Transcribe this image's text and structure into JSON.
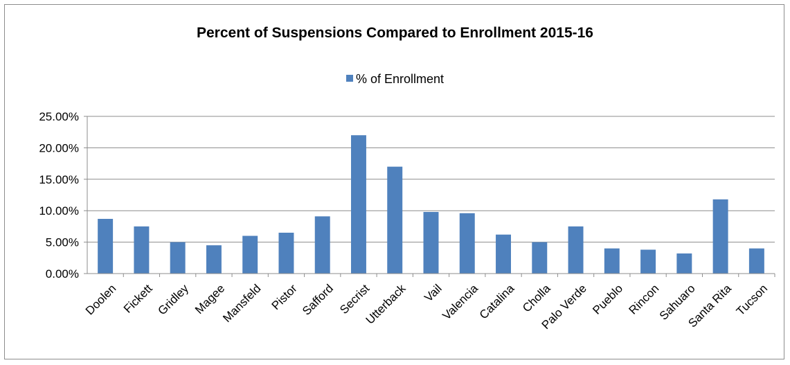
{
  "chart_data": {
    "type": "bar",
    "title": "Percent of Suspensions Compared to Enrollment 2015-16",
    "categories": [
      "Doolen",
      "Fickett",
      "Gridley",
      "Magee",
      "Mansfeld",
      "Pistor",
      "Safford",
      "Secrist",
      "Utterback",
      "Vail",
      "Valencia",
      "Catalina",
      "Cholla",
      "Palo Verde",
      "Pueblo",
      "Rincon",
      "Sahuaro",
      "Santa Rita",
      "Tucson"
    ],
    "series": [
      {
        "name": "% of Enrollment",
        "color": "#4f81bd",
        "values": [
          0.087,
          0.075,
          0.05,
          0.045,
          0.06,
          0.065,
          0.091,
          0.22,
          0.17,
          0.098,
          0.096,
          0.062,
          0.05,
          0.075,
          0.04,
          0.038,
          0.032,
          0.118,
          0.04
        ]
      }
    ],
    "ylim": [
      0,
      0.25
    ],
    "yticks": [
      0,
      0.05,
      0.1,
      0.15,
      0.2,
      0.25
    ],
    "ytick_labels": [
      "0.00%",
      "5.00%",
      "10.00%",
      "15.00%",
      "20.00%",
      "25.00%"
    ],
    "grid": true,
    "legend_position": "top"
  }
}
